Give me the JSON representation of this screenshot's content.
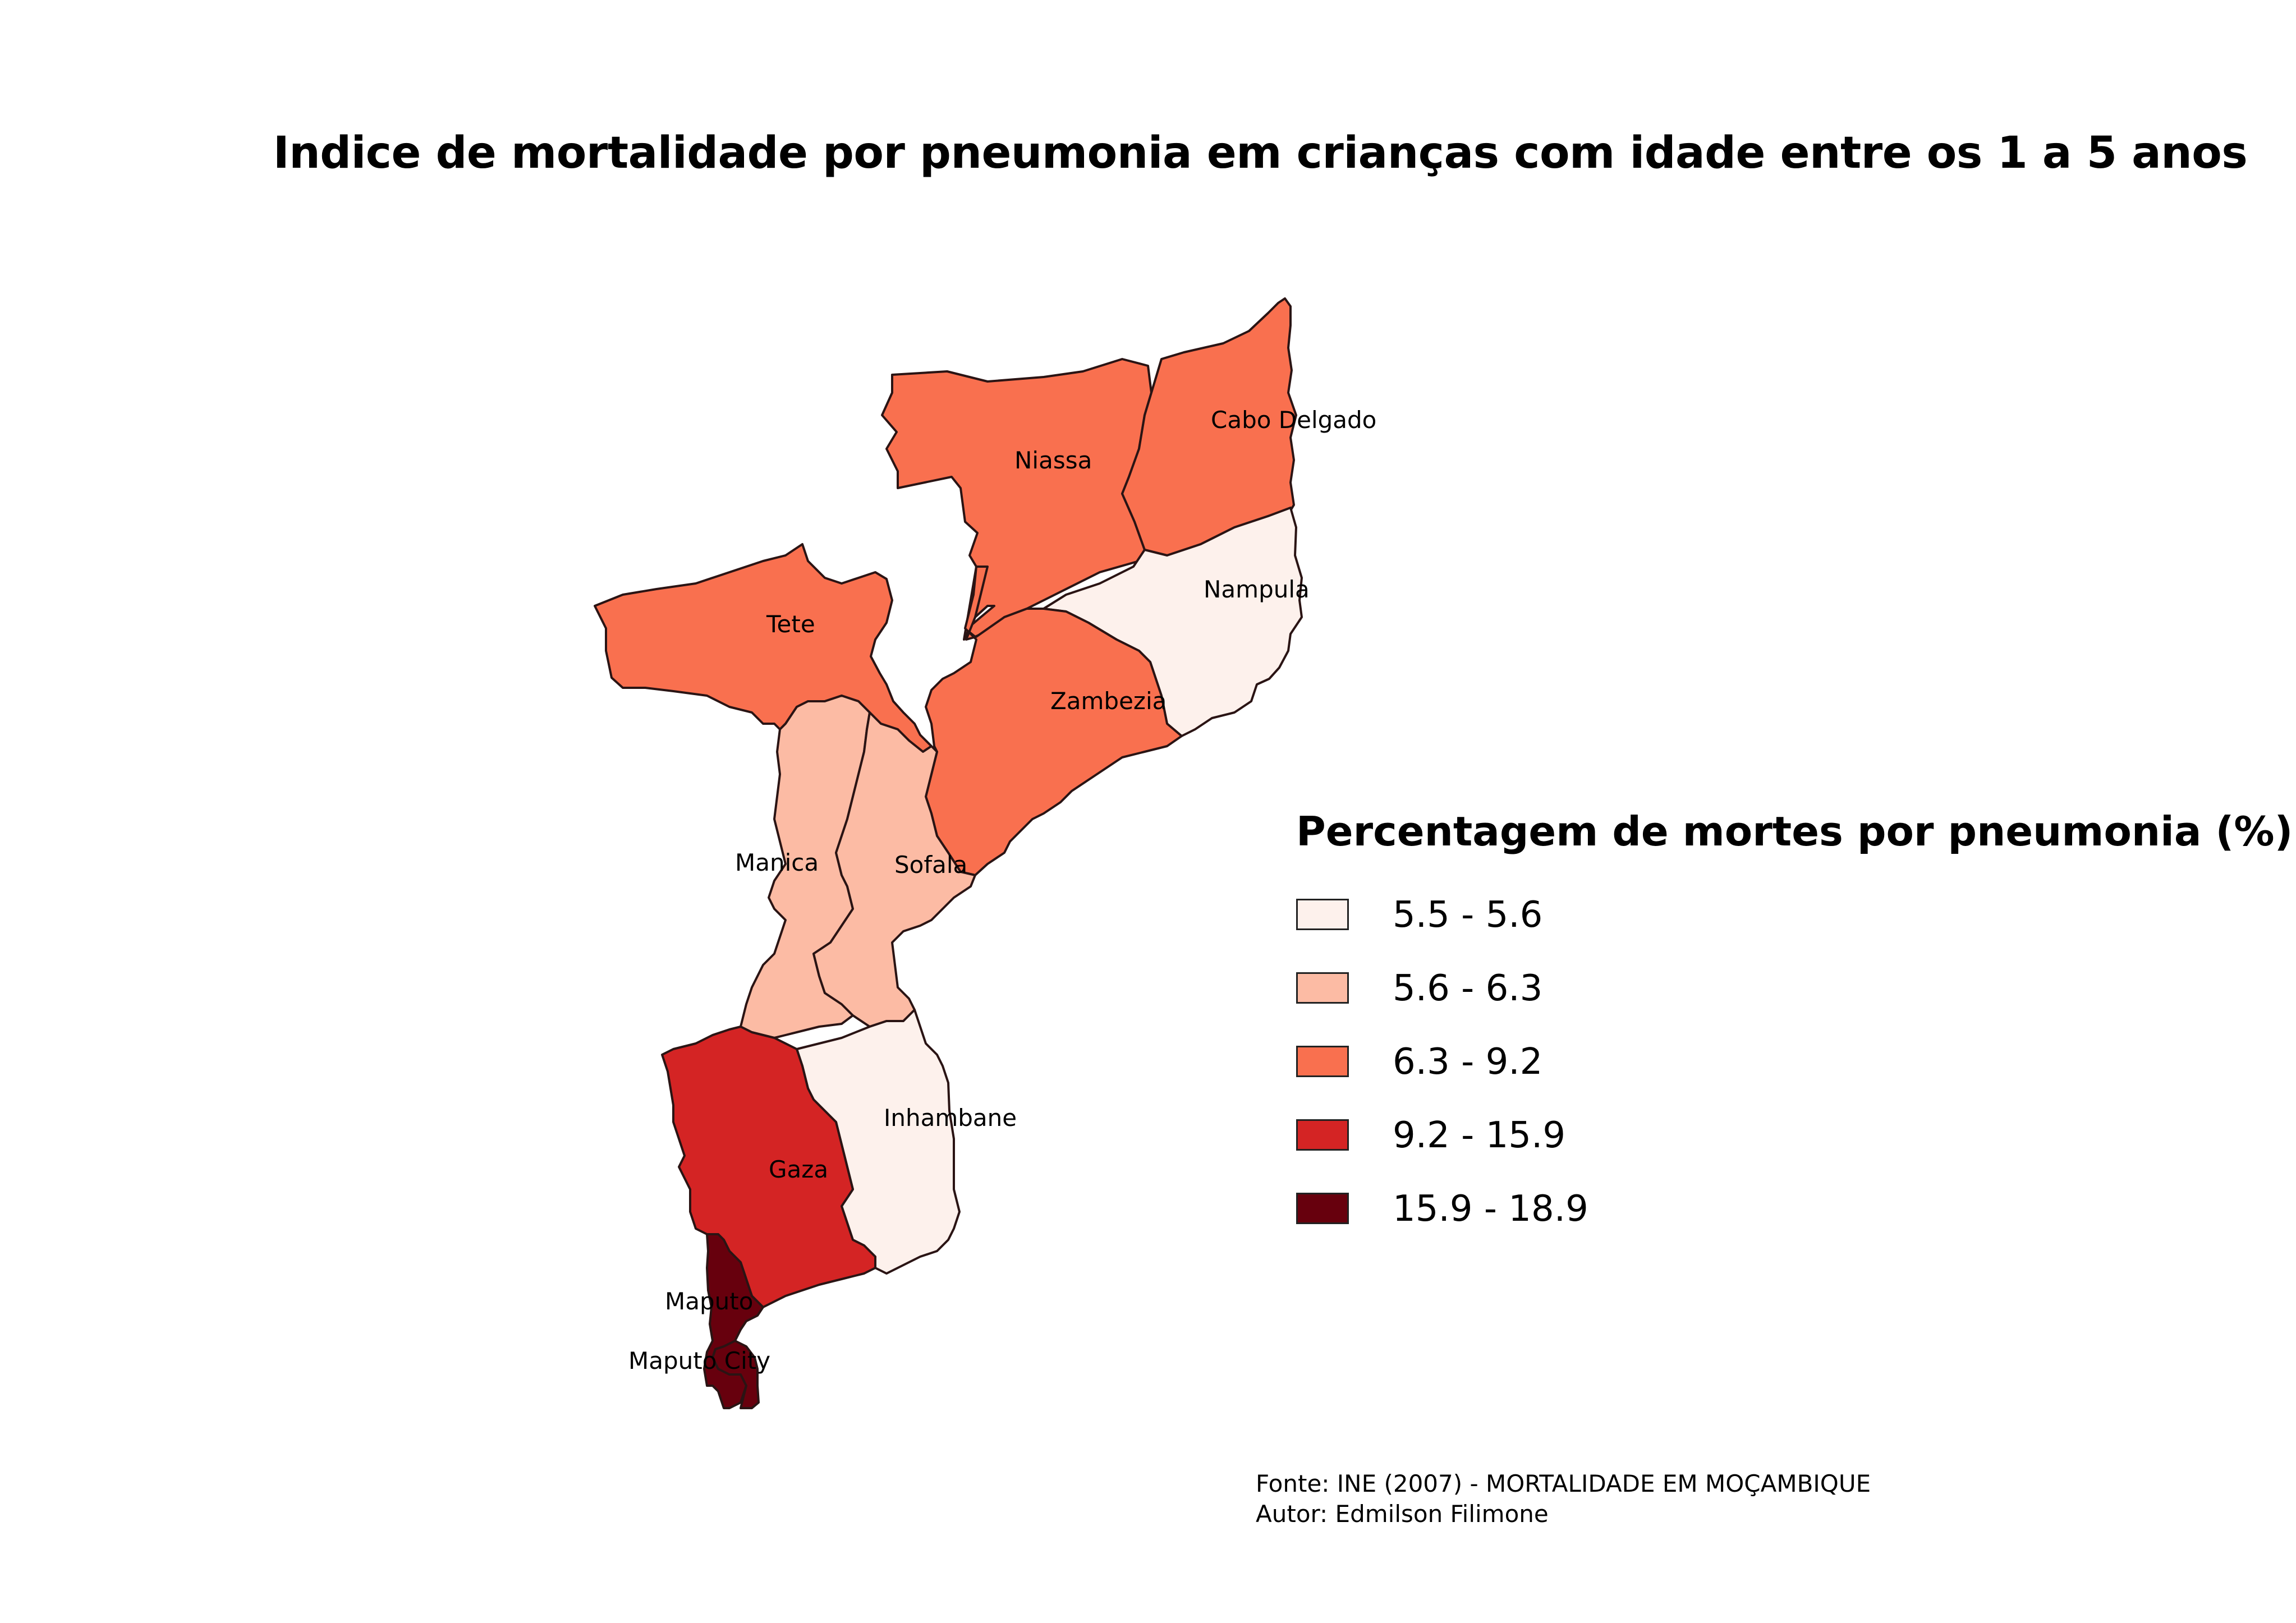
{
  "title": "Indice de mortalidade por pneumonia em crianças com idade entre os 1 a 5 anos",
  "legend": {
    "title": "Percentagem de mortes por pneumonia (%)",
    "classes": [
      {
        "label": "5.5 - 5.6",
        "color": "#fdf1ec"
      },
      {
        "label": "5.6 - 6.3",
        "color": "#fcbba4"
      },
      {
        "label": "6.3 - 9.2",
        "color": "#f9704f"
      },
      {
        "label": "9.2 - 15.9",
        "color": "#d42424"
      },
      {
        "label": "15.9 - 18.9",
        "color": "#67000d"
      }
    ]
  },
  "provinces": [
    {
      "name": "Niassa",
      "class": 2
    },
    {
      "name": "Cabo Delgado",
      "class": 2
    },
    {
      "name": "Nampula",
      "class": 0
    },
    {
      "name": "Tete",
      "class": 2
    },
    {
      "name": "Zambezia",
      "class": 2
    },
    {
      "name": "Manica",
      "class": 1
    },
    {
      "name": "Sofala",
      "class": 1
    },
    {
      "name": "Inhambane",
      "class": 0
    },
    {
      "name": "Gaza",
      "class": 3
    },
    {
      "name": "Maputo",
      "class": 4
    },
    {
      "name": "Maputo City",
      "class": 4
    }
  ],
  "source": {
    "line1": "Fonte: INE (2007) - MORTALIDADE EM MOÇAMBIQUE",
    "line2": "Autor: Edmilson Filimone"
  }
}
